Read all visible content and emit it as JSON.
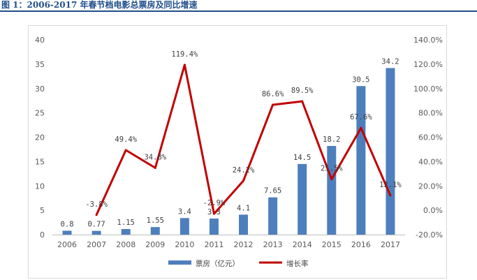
{
  "figure": {
    "title": "图 1：2006-2017 年春节档电影总票房及同比增速"
  },
  "chart_data": {
    "type": "bar",
    "categories": [
      "2006",
      "2007",
      "2008",
      "2009",
      "2010",
      "2011",
      "2012",
      "2013",
      "2014",
      "2015",
      "2016",
      "2017"
    ],
    "series": [
      {
        "name": "票房（亿元）",
        "type": "bar",
        "axis": "left",
        "color": "#4e7fbd",
        "values": [
          0.8,
          0.77,
          1.15,
          1.55,
          3.4,
          3.3,
          4.1,
          7.65,
          14.5,
          18.2,
          30.5,
          34.2
        ],
        "labels": [
          "0.8",
          "0.77",
          "1.15",
          "1.55",
          "3.4",
          "3.3",
          "4.1",
          "7.65",
          "14.5",
          "18.2",
          "30.5",
          "34.2"
        ]
      },
      {
        "name": "增长率",
        "type": "line",
        "axis": "right",
        "color": "#c00000",
        "values": [
          null,
          -3.8,
          49.4,
          34.8,
          119.4,
          -2.9,
          24.2,
          86.6,
          89.5,
          25.5,
          67.6,
          12.1
        ],
        "labels": [
          "",
          "-3.8%",
          "49.4%",
          "34.8%",
          "119.4%",
          "-2.9%",
          "24.2%",
          "86.6%",
          "89.5%",
          "25.5%",
          "67.6%",
          "12.1%"
        ]
      }
    ],
    "y_left": {
      "lim": [
        0,
        40
      ],
      "ticks": [
        "0",
        "5",
        "10",
        "15",
        "20",
        "25",
        "30",
        "35",
        "40"
      ]
    },
    "y_right": {
      "lim": [
        -20,
        140
      ],
      "ticks": [
        "-20.0%",
        "0.0%",
        "20.0%",
        "40.0%",
        "60.0%",
        "80.0%",
        "100.0%",
        "120.0%",
        "140.0%"
      ]
    },
    "legend_position": "bottom",
    "grid": false
  }
}
